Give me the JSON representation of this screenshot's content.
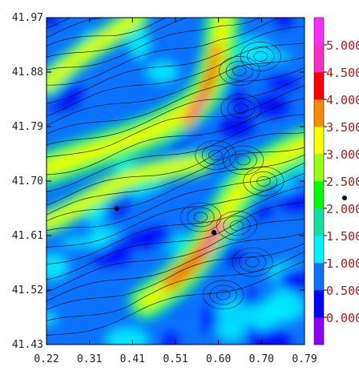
{
  "chart_data": {
    "type": "heatmap",
    "title": "",
    "xlabel": "",
    "ylabel": "",
    "x_ticks": [
      "0.22",
      "0.31",
      "0.41",
      "0.51",
      "0.60",
      "0.70",
      "0.79"
    ],
    "y_ticks": [
      "41.97",
      "41.88",
      "41.79",
      "41.70",
      "41.61",
      "41.52",
      "41.43"
    ],
    "xlim": [
      0.22,
      0.79
    ],
    "ylim": [
      41.43,
      41.97
    ],
    "colorbar": {
      "levels": [
        "0.000",
        "0.500",
        "1.000",
        "1.500",
        "2.000",
        "2.500",
        "3.000",
        "3.500",
        "4.000",
        "4.500",
        "5.000"
      ],
      "colors": [
        "#8f00ff",
        "#0000ff",
        "#0a72ff",
        "#00f2ff",
        "#11e29f",
        "#00ff00",
        "#9aff11",
        "#ffff00",
        "#ff8a00",
        "#ff0000",
        "#ff2cc8",
        "#ff2cff"
      ]
    },
    "overlay": "streamlines",
    "markers": [
      {
        "x": 0.375,
        "y": 41.655
      },
      {
        "x": 0.59,
        "y": 41.615
      }
    ],
    "bands": [
      {
        "name": "",
        "points": [
          [
            0.22,
            41.72
          ],
          [
            0.33,
            41.75
          ],
          [
            0.45,
            41.78
          ],
          [
            0.52,
            41.81
          ],
          [
            0.57,
            41.84
          ],
          [
            0.6,
            41.9
          ],
          [
            0.61,
            41.97
          ]
        ]
      },
      {
        "name": "",
        "points": [
          [
            0.44,
            41.5
          ],
          [
            0.5,
            41.53
          ],
          [
            0.56,
            41.58
          ],
          [
            0.6,
            41.63
          ],
          [
            0.64,
            41.68
          ],
          [
            0.69,
            41.72
          ],
          [
            0.79,
            41.76
          ]
        ]
      },
      {
        "name": "",
        "points": [
          [
            0.22,
            41.63
          ],
          [
            0.3,
            41.66
          ],
          [
            0.38,
            41.7
          ],
          [
            0.48,
            41.72
          ],
          [
            0.56,
            41.73
          ]
        ]
      },
      {
        "name": "",
        "points": [
          [
            0.22,
            41.86
          ],
          [
            0.28,
            41.9
          ],
          [
            0.36,
            41.94
          ],
          [
            0.42,
            41.97
          ]
        ]
      }
    ]
  }
}
